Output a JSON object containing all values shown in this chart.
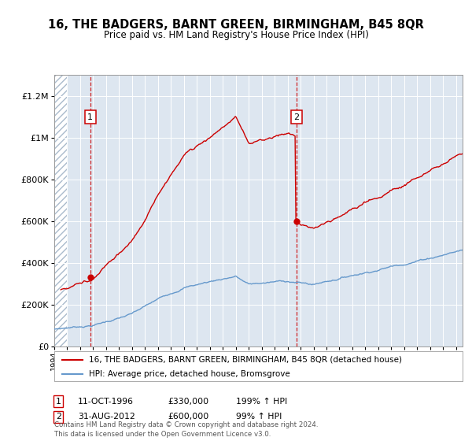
{
  "title": "16, THE BADGERS, BARNT GREEN, BIRMINGHAM, B45 8QR",
  "subtitle": "Price paid vs. HM Land Registry's House Price Index (HPI)",
  "legend_line1": "16, THE BADGERS, BARNT GREEN, BIRMINGHAM, B45 8QR (detached house)",
  "legend_line2": "HPI: Average price, detached house, Bromsgrove",
  "footer": "Contains HM Land Registry data © Crown copyright and database right 2024.\nThis data is licensed under the Open Government Licence v3.0.",
  "annotation1_date": "11-OCT-1996",
  "annotation1_price": "£330,000",
  "annotation1_hpi": "199% ↑ HPI",
  "annotation2_date": "31-AUG-2012",
  "annotation2_price": "£600,000",
  "annotation2_hpi": "99% ↑ HPI",
  "price_color": "#cc0000",
  "hpi_color": "#6699cc",
  "annotation_color": "#cc0000",
  "background_color": "#ffffff",
  "plot_bg_color": "#dde6f0",
  "ylim": [
    0,
    1300000
  ],
  "xlim_start": 1994.0,
  "xlim_end": 2025.5,
  "sale1_x": 1996.78,
  "sale1_y": 330000,
  "sale2_x": 2012.67,
  "sale2_y": 600000
}
